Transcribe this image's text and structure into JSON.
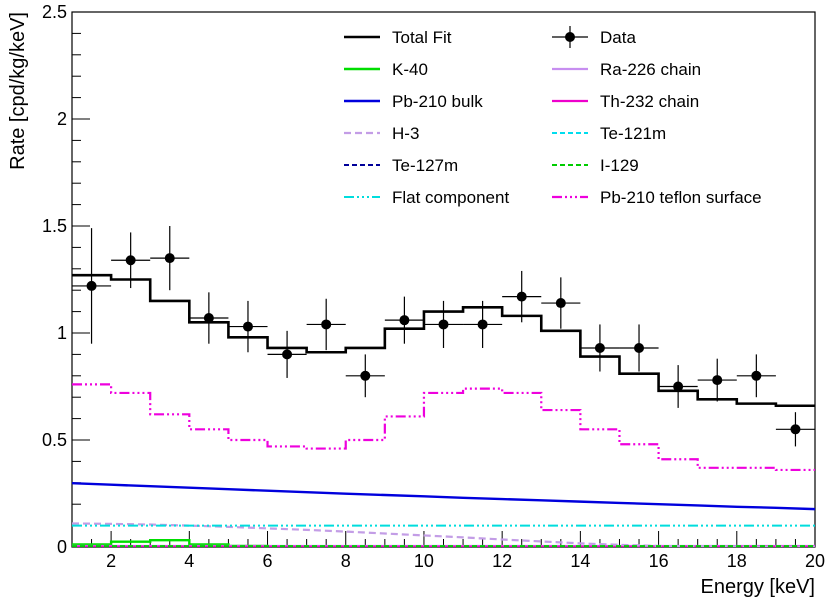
{
  "chart_data": {
    "type": "line",
    "xlabel": "Energy [keV]",
    "ylabel": "Rate [cpd/kg/keV]",
    "xlim": [
      1,
      20
    ],
    "ylim": [
      0,
      2.5
    ],
    "x_ticks": [
      2,
      4,
      6,
      8,
      10,
      12,
      14,
      16,
      18,
      20
    ],
    "y_ticks": [
      0,
      0.5,
      1,
      1.5,
      2,
      2.5
    ],
    "x_tick_labels": [
      "2",
      "4",
      "6",
      "8",
      "10",
      "12",
      "14",
      "16",
      "18",
      "20"
    ],
    "y_tick_labels": [
      "0",
      "0.5",
      "1",
      "1.5",
      "2",
      "2.5"
    ],
    "bin_edges": [
      1,
      2,
      3,
      4,
      5,
      6,
      7,
      8,
      9,
      10,
      11,
      12,
      13,
      14,
      15,
      16,
      17,
      18,
      19,
      20
    ],
    "data": {
      "name": "Data",
      "x": [
        1.5,
        2.5,
        3.5,
        4.5,
        5.5,
        6.5,
        7.5,
        8.5,
        9.5,
        10.5,
        11.5,
        12.5,
        13.5,
        14.5,
        15.5,
        16.5,
        17.5,
        18.5,
        19.5
      ],
      "y": [
        1.22,
        1.34,
        1.35,
        1.07,
        1.03,
        0.9,
        1.04,
        0.8,
        1.06,
        1.04,
        1.04,
        1.17,
        1.14,
        0.93,
        0.93,
        0.75,
        0.78,
        0.8,
        0.55
      ],
      "yerr": [
        0.27,
        0.13,
        0.15,
        0.12,
        0.12,
        0.11,
        0.12,
        0.1,
        0.11,
        0.11,
        0.11,
        0.12,
        0.12,
        0.11,
        0.11,
        0.1,
        0.1,
        0.1,
        0.08
      ],
      "xerr": 0.5
    },
    "series": [
      {
        "name": "Total Fit",
        "kind": "hist",
        "color": "#000000",
        "dash": "",
        "width": 2.6,
        "values": [
          1.27,
          1.25,
          1.15,
          1.05,
          0.98,
          0.93,
          0.91,
          0.93,
          1.02,
          1.1,
          1.12,
          1.08,
          1.01,
          0.89,
          0.81,
          0.73,
          0.69,
          0.67,
          0.66
        ]
      },
      {
        "name": "K-40",
        "kind": "hist",
        "color": "#00dd00",
        "dash": "",
        "width": 2.4,
        "values": [
          0.012,
          0.025,
          0.032,
          0.012,
          0.005,
          0.004,
          0.004,
          0.004,
          0.004,
          0.004,
          0.004,
          0.004,
          0.004,
          0.004,
          0.004,
          0.004,
          0.004,
          0.004,
          0.004
        ]
      },
      {
        "name": "Ra-226 chain",
        "kind": "line",
        "color": "#c78ef0",
        "dash": "",
        "width": 2.2,
        "values": [
          0.005,
          0.005,
          0.005,
          0.005,
          0.005,
          0.005,
          0.005,
          0.005,
          0.005,
          0.005,
          0.005,
          0.005,
          0.005,
          0.005,
          0.005,
          0.005,
          0.005,
          0.005,
          0.005
        ]
      },
      {
        "name": "Pb-210 bulk",
        "kind": "line",
        "color": "#0000dd",
        "dash": "",
        "width": 2.4,
        "values": [
          0.298,
          0.291,
          0.284,
          0.277,
          0.27,
          0.263,
          0.256,
          0.249,
          0.243,
          0.237,
          0.23,
          0.224,
          0.218,
          0.212,
          0.206,
          0.2,
          0.194,
          0.188,
          0.183,
          0.177
        ]
      },
      {
        "name": "Th-232 chain",
        "kind": "line",
        "color": "#ee00cc",
        "dash": "",
        "width": 2.2,
        "values": [
          0.002,
          0.002,
          0.002,
          0.002,
          0.002,
          0.002,
          0.002,
          0.002,
          0.002,
          0.002,
          0.002,
          0.002,
          0.002,
          0.002,
          0.002,
          0.002,
          0.002,
          0.002,
          0.002
        ]
      },
      {
        "name": "H-3",
        "kind": "line",
        "color": "#c39de6",
        "dash": "7,4",
        "width": 2.2,
        "values": [
          0.11,
          0.108,
          0.105,
          0.1,
          0.094,
          0.087,
          0.08,
          0.072,
          0.063,
          0.054,
          0.045,
          0.035,
          0.026,
          0.017,
          0.01,
          0.005,
          0.002,
          0.001,
          0.0,
          0.0
        ]
      },
      {
        "name": "Te-121m",
        "kind": "line",
        "color": "#00ddee",
        "dash": "5,3",
        "width": 2.0,
        "values": [
          0.003,
          0.003,
          0.003,
          0.003,
          0.003,
          0.003,
          0.003,
          0.003,
          0.003,
          0.003,
          0.003,
          0.003,
          0.003,
          0.003,
          0.003,
          0.003,
          0.003,
          0.003,
          0.003,
          0.003
        ]
      },
      {
        "name": "Te-127m",
        "kind": "line",
        "color": "#000099",
        "dash": "5,3",
        "width": 2.0,
        "values": [
          0.001,
          0.001,
          0.001,
          0.001,
          0.001,
          0.001,
          0.001,
          0.001,
          0.001,
          0.001,
          0.001,
          0.001,
          0.001,
          0.001,
          0.001,
          0.001,
          0.001,
          0.001,
          0.001,
          0.001
        ]
      },
      {
        "name": "I-129",
        "kind": "line",
        "color": "#00cc00",
        "dash": "5,3",
        "width": 2.0,
        "values": [
          0.004,
          0.004,
          0.004,
          0.004,
          0.004,
          0.004,
          0.004,
          0.004,
          0.004,
          0.004,
          0.004,
          0.004,
          0.004,
          0.004,
          0.004,
          0.004,
          0.004,
          0.004,
          0.004,
          0.004
        ]
      },
      {
        "name": "Flat component",
        "kind": "line",
        "color": "#00dddd",
        "dash": "10,3,2,3,2,3,2,3",
        "width": 2.0,
        "values": [
          0.1,
          0.1,
          0.1,
          0.1,
          0.1,
          0.1,
          0.1,
          0.1,
          0.1,
          0.1,
          0.1,
          0.1,
          0.1,
          0.1,
          0.1,
          0.1,
          0.1,
          0.1,
          0.1,
          0.1
        ]
      },
      {
        "name": "Pb-210 teflon surface",
        "kind": "hist",
        "color": "#ee00dd",
        "dash": "10,3,2,3,2,3,2,3",
        "width": 2.2,
        "values": [
          0.76,
          0.72,
          0.62,
          0.55,
          0.5,
          0.47,
          0.46,
          0.5,
          0.61,
          0.72,
          0.74,
          0.72,
          0.64,
          0.55,
          0.48,
          0.41,
          0.37,
          0.37,
          0.36
        ]
      }
    ],
    "legend": {
      "placement": "top-right",
      "entries": [
        "Total Fit",
        "Data",
        "K-40",
        "Ra-226 chain",
        "Pb-210 bulk",
        "Th-232 chain",
        "H-3",
        "Te-121m",
        "Te-127m",
        "I-129",
        "Flat component",
        "Pb-210 teflon surface"
      ]
    }
  }
}
